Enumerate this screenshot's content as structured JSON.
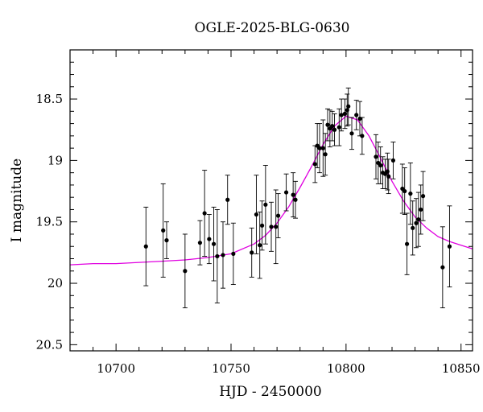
{
  "chart_data": {
    "type": "scatter",
    "title": "OGLE-2025-BLG-0630",
    "xlabel": "HJD - 2450000",
    "ylabel": "I magnitude",
    "xlim": [
      10680,
      10855
    ],
    "ylim": [
      20.55,
      18.1
    ],
    "y_inverted": true,
    "x_ticks": [
      10700,
      10750,
      10800,
      10850
    ],
    "x_tick_labels": [
      "10700",
      "10750",
      "10800",
      "10850"
    ],
    "y_ticks": [
      18.5,
      19,
      19.5,
      20,
      20.5
    ],
    "y_tick_labels": [
      "18.5",
      "19",
      "19.5",
      "20",
      "20.5"
    ],
    "grid": false,
    "colors": {
      "points": "#000000",
      "model": "#e000e0"
    },
    "series": [
      {
        "style": "points-with-errorbars",
        "x": [
          10713,
          10720.5,
          10722,
          10730,
          10736.5,
          10738.5,
          10740.5,
          10742.5,
          10744,
          10746.5,
          10748.5,
          10751,
          10759,
          10761,
          10762.5,
          10763.5,
          10765,
          10767.5,
          10769.5,
          10770.5,
          10774,
          10777,
          10778,
          10786.5,
          10787.5,
          10788.5,
          10790,
          10791,
          10792,
          10793,
          10794,
          10795,
          10797,
          10798,
          10799.5,
          10800.5,
          10801,
          10802.5,
          10804.5,
          10806,
          10807,
          10813,
          10814,
          10815,
          10816,
          10817,
          10818,
          10818.5,
          10820.5,
          10824.5,
          10825.5,
          10826.5,
          10828,
          10829,
          10830.5,
          10831.5,
          10832.5,
          10833.5,
          10842,
          10845
        ],
        "y": [
          19.7,
          19.57,
          19.65,
          19.9,
          19.67,
          19.43,
          19.64,
          19.68,
          19.78,
          19.77,
          19.32,
          19.76,
          19.75,
          19.44,
          19.69,
          19.53,
          19.36,
          19.54,
          19.54,
          19.45,
          19.26,
          19.28,
          19.32,
          19.03,
          18.88,
          18.9,
          18.9,
          18.95,
          18.71,
          18.74,
          18.72,
          18.75,
          18.73,
          18.63,
          18.62,
          18.59,
          18.56,
          18.78,
          18.63,
          18.66,
          18.8,
          18.97,
          19.02,
          19.04,
          19.1,
          19.11,
          19.09,
          19.13,
          19.0,
          19.23,
          19.25,
          19.68,
          19.27,
          19.55,
          19.51,
          19.48,
          19.4,
          19.29,
          19.87,
          19.7
        ],
        "yerr": [
          0.32,
          0.38,
          0.15,
          0.3,
          0.18,
          0.35,
          0.2,
          0.3,
          0.38,
          0.27,
          0.2,
          0.25,
          0.2,
          0.32,
          0.27,
          0.2,
          0.32,
          0.2,
          0.3,
          0.18,
          0.15,
          0.18,
          0.15,
          0.15,
          0.18,
          0.2,
          0.23,
          0.17,
          0.13,
          0.15,
          0.12,
          0.13,
          0.15,
          0.13,
          0.12,
          0.13,
          0.15,
          0.13,
          0.12,
          0.14,
          0.15,
          0.18,
          0.17,
          0.15,
          0.13,
          0.12,
          0.15,
          0.14,
          0.15,
          0.2,
          0.19,
          0.25,
          0.25,
          0.22,
          0.2,
          0.22,
          0.2,
          0.2,
          0.33,
          0.33
        ]
      },
      {
        "style": "model-curve",
        "x": [
          10680,
          10690,
          10700,
          10710,
          10720,
          10730,
          10740,
          10750,
          10760,
          10765,
          10770,
          10775,
          10780,
          10785,
          10790,
          10795,
          10800,
          10805,
          10810,
          10815,
          10820,
          10825,
          10830,
          10835,
          10840,
          10845,
          10850,
          10855
        ],
        "y": [
          19.85,
          19.84,
          19.84,
          19.83,
          19.82,
          19.81,
          19.79,
          19.76,
          19.68,
          19.61,
          19.51,
          19.38,
          19.22,
          19.05,
          18.87,
          18.72,
          18.64,
          18.67,
          18.8,
          18.98,
          19.17,
          19.33,
          19.46,
          19.55,
          19.62,
          19.66,
          19.69,
          19.72
        ]
      }
    ]
  }
}
